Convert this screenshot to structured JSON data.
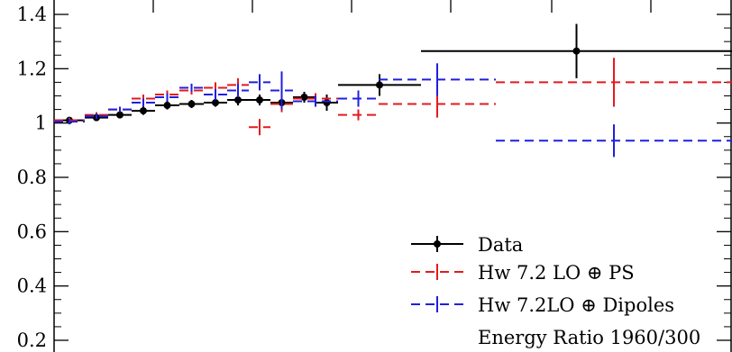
{
  "chart_data": {
    "type": "line",
    "ylim": [
      0.2,
      1.45
    ],
    "yticks": [
      {
        "value": 0.2,
        "label": "0.2"
      },
      {
        "value": 0.4,
        "label": "0.4"
      },
      {
        "value": 0.6,
        "label": "0.6"
      },
      {
        "value": 0.8,
        "label": "0.8"
      },
      {
        "value": 1.0,
        "label": "1"
      },
      {
        "value": 1.2,
        "label": "1.2"
      },
      {
        "value": 1.4,
        "label": "1.4"
      }
    ],
    "bin_edges": [
      0,
      1,
      2,
      3,
      4,
      5,
      6,
      7,
      8,
      9,
      10,
      11,
      12,
      14,
      16,
      20,
      40
    ],
    "series": [
      {
        "name": "Data",
        "color": "#000000",
        "style": "solid",
        "markers": true,
        "values": [
          1.01,
          1.02,
          1.03,
          1.045,
          1.065,
          1.07,
          1.075,
          1.085,
          1.085,
          1.075,
          1.095,
          1.075,
          1.14,
          1.265
        ],
        "errors": [
          0.01,
          0.01,
          0.01,
          0.015,
          0.015,
          0.015,
          0.015,
          0.02,
          0.02,
          0.02,
          0.02,
          0.03,
          0.04,
          0.1
        ],
        "bins": [
          [
            0,
            1
          ],
          [
            1,
            2
          ],
          [
            2,
            3
          ],
          [
            3,
            4
          ],
          [
            4,
            5
          ],
          [
            5,
            6
          ],
          [
            6,
            7
          ],
          [
            7,
            8
          ],
          [
            8,
            9
          ],
          [
            9,
            10
          ],
          [
            10,
            11
          ],
          [
            11,
            12
          ],
          [
            12,
            16
          ],
          [
            16,
            40
          ]
        ]
      },
      {
        "name": "Hw 7.2 LO ⊕ PS",
        "color": "#e41a1c",
        "style": "dashed",
        "markers": false,
        "values": [
          1.01,
          1.03,
          1.05,
          1.09,
          1.105,
          1.12,
          1.13,
          1.14,
          0.985,
          1.07,
          1.09,
          1.03,
          1.07,
          1.15
        ],
        "errors": [
          0.01,
          0.01,
          0.01,
          0.015,
          0.015,
          0.015,
          0.02,
          0.025,
          0.03,
          0.03,
          0.02,
          0.02,
          0.05,
          0.09
        ],
        "bins": [
          [
            0,
            1
          ],
          [
            1,
            2
          ],
          [
            2,
            3
          ],
          [
            3,
            4
          ],
          [
            4,
            5
          ],
          [
            5,
            6
          ],
          [
            6,
            7
          ],
          [
            7,
            8
          ],
          [
            8,
            9
          ],
          [
            9,
            10
          ],
          [
            10,
            12
          ],
          [
            12,
            14
          ],
          [
            14,
            20
          ],
          [
            20,
            40
          ]
        ]
      },
      {
        "name": "Hw 7.2LO ⊕ Dipoles",
        "color": "#1f1fe0",
        "style": "dashed",
        "markers": false,
        "values": [
          1.005,
          1.025,
          1.05,
          1.075,
          1.095,
          1.13,
          1.105,
          1.12,
          1.15,
          1.12,
          1.08,
          1.09,
          1.16,
          0.935
        ],
        "errors": [
          0.01,
          0.01,
          0.01,
          0.015,
          0.015,
          0.015,
          0.02,
          0.025,
          0.03,
          0.07,
          0.02,
          0.03,
          0.06,
          0.06
        ],
        "bins": [
          [
            0,
            1
          ],
          [
            1,
            2
          ],
          [
            2,
            3
          ],
          [
            3,
            4
          ],
          [
            4,
            5
          ],
          [
            5,
            6
          ],
          [
            6,
            7
          ],
          [
            7,
            8
          ],
          [
            8,
            9
          ],
          [
            9,
            10
          ],
          [
            10,
            12
          ],
          [
            12,
            14
          ],
          [
            14,
            20
          ],
          [
            20,
            40
          ]
        ]
      }
    ],
    "legend_position": "bottom-right",
    "annotation": "Energy Ratio 1960/300"
  }
}
